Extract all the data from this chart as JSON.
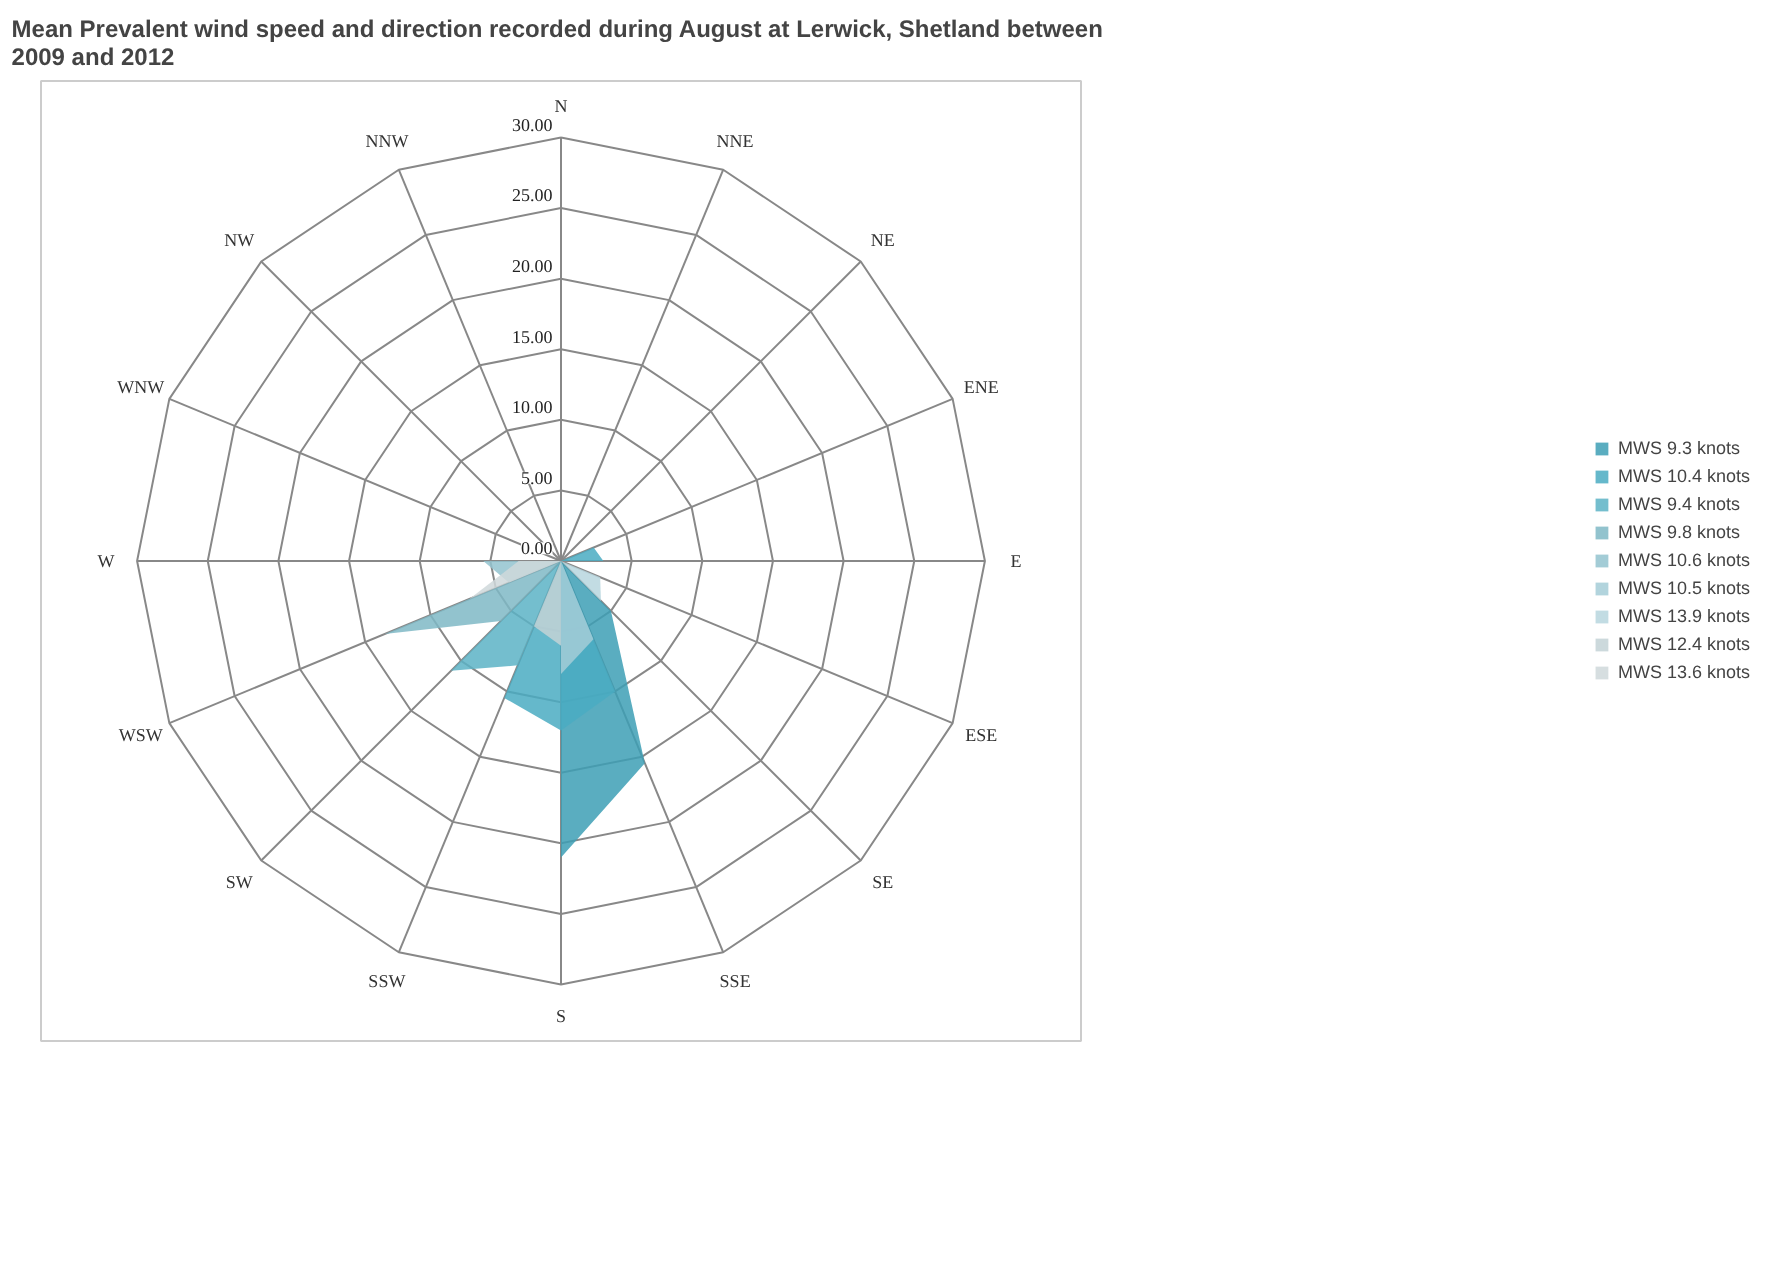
{
  "chart_data": {
    "type": "radar",
    "title": "Mean Prevalent wind speed and direction recorded  during August at Lerwick, Shetland between 2009 and 2012",
    "categories": [
      "N",
      "NNE",
      "NE",
      "ENE",
      "E",
      "ESE",
      "SE",
      "SSE",
      "S",
      "SSW",
      "SW",
      "WSW",
      "W",
      "WNW",
      "NW",
      "NNW"
    ],
    "ylim": [
      0,
      30
    ],
    "yticks": [
      {
        "value": 0,
        "label": "0.00"
      },
      {
        "value": 5,
        "label": "5.00"
      },
      {
        "value": 10,
        "label": "10.00"
      },
      {
        "value": 15,
        "label": "15.00"
      },
      {
        "value": 20,
        "label": "20.00"
      },
      {
        "value": 25,
        "label": "25.00"
      },
      {
        "value": 30,
        "label": "30.00"
      }
    ],
    "grid": true,
    "legend": "right",
    "series": [
      {
        "name": "MWS 9.3 knots",
        "color": "#3d9fb5",
        "values": [
          0,
          0,
          0,
          0,
          2.5,
          0,
          5,
          15.5,
          21,
          0,
          0,
          0,
          0,
          0,
          0,
          0
        ]
      },
      {
        "name": "MWS 10.4 knots",
        "color": "#4aacc2",
        "values": [
          0,
          0,
          0,
          2.5,
          3,
          0,
          0,
          10,
          12,
          10.5,
          0,
          0,
          0,
          0,
          0,
          0
        ]
      },
      {
        "name": "MWS 9.4 knots",
        "color": "#5cb3c6",
        "values": [
          0,
          0,
          0,
          0,
          0,
          0,
          0,
          0,
          0,
          8,
          11,
          0,
          0,
          0,
          0,
          0
        ]
      },
      {
        "name": "MWS 9.8 knots",
        "color": "#7fb9c6",
        "values": [
          0,
          0,
          0,
          0,
          0,
          0,
          0,
          0,
          0,
          0,
          6,
          13.5,
          0,
          0,
          0,
          0
        ]
      },
      {
        "name": "MWS 10.6 knots",
        "color": "#93c3cf",
        "values": [
          0,
          0,
          0,
          0,
          0,
          0,
          0,
          0,
          0,
          0,
          0,
          4,
          5.5,
          0,
          0,
          0
        ]
      },
      {
        "name": "MWS 10.5 knots",
        "color": "#a4cdd7",
        "values": [
          0,
          0,
          0,
          0,
          0,
          0,
          0,
          6,
          8,
          0,
          0,
          0,
          0,
          0,
          0,
          0
        ]
      },
      {
        "name": "MWS 13.9 knots",
        "color": "#b7d6de",
        "values": [
          0,
          0,
          0,
          0,
          0,
          3,
          4,
          0,
          0,
          0,
          0,
          0,
          0,
          0,
          0,
          0
        ]
      },
      {
        "name": "MWS 12.4 knots",
        "color": "#c3d2d6",
        "values": [
          0,
          0,
          0,
          0,
          0,
          0,
          0,
          0,
          6,
          5,
          0,
          0,
          0,
          0,
          0,
          0
        ]
      },
      {
        "name": "MWS 13.6 knots",
        "color": "#cfd8db",
        "values": [
          0,
          0,
          0,
          0,
          0,
          0,
          0,
          0,
          0,
          0,
          0,
          7,
          3,
          0,
          0,
          0
        ]
      }
    ]
  }
}
